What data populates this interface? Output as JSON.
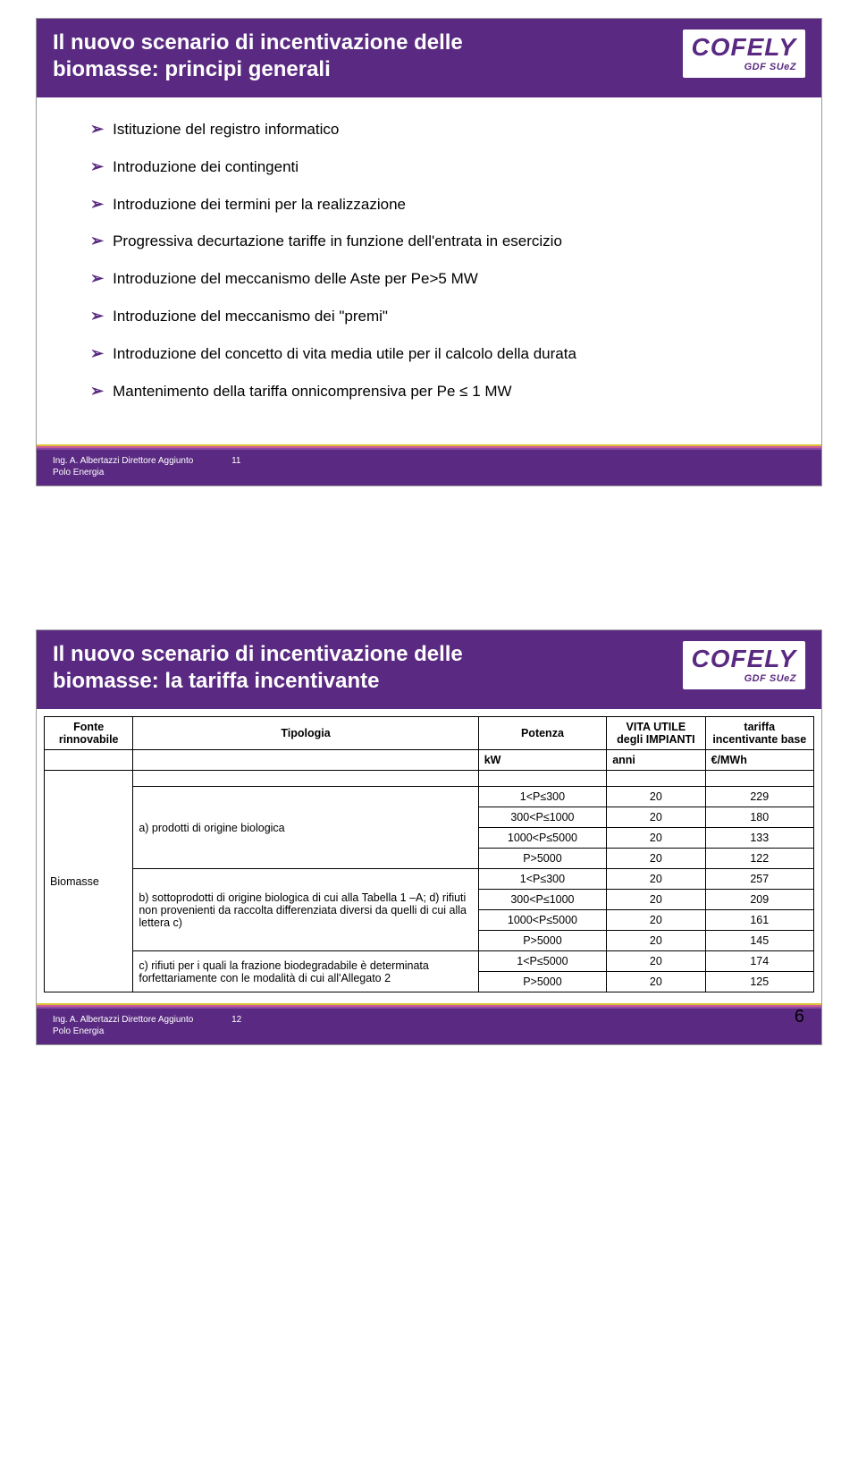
{
  "colors": {
    "brand_purple": "#5a2a82",
    "stripe_yellow": "#d9c23a",
    "stripe_pink": "#cc5a99",
    "stripe_purple": "#8b4aa3",
    "white": "#ffffff",
    "black": "#000000"
  },
  "logo": {
    "main": "COFELY",
    "sub": "GDF SUeZ"
  },
  "slide1": {
    "title_line1": "Il  nuovo scenario di incentivazione delle",
    "title_line2": "biomasse: principi generali",
    "bullets": [
      "Istituzione del registro informatico",
      "Introduzione dei contingenti",
      "Introduzione dei termini per la realizzazione",
      "Progressiva decurtazione tariffe in funzione dell'entrata in esercizio",
      "Introduzione del meccanismo delle Aste per Pe>5 MW",
      "Introduzione del meccanismo dei \"premi\"",
      "Introduzione del concetto di vita media utile per il calcolo della durata",
      "Mantenimento della tariffa onnicomprensiva per Pe ≤ 1 MW"
    ],
    "footer_credit1": "Ing. A. Albertazzi Direttore Aggiunto",
    "footer_credit2": "Polo Energia",
    "footer_num": "11"
  },
  "slide2": {
    "title_line1": "Il  nuovo scenario di incentivazione delle",
    "title_line2": "biomasse: la tariffa incentivante",
    "table": {
      "headers": {
        "fonte": "Fonte rinnovabile",
        "tipologia": "Tipologia",
        "potenza": "Potenza",
        "vita_utile": "VITA UTILE degli IMPIANTI",
        "tariffa": "tariffa incentivante base"
      },
      "units": {
        "potenza": "kW",
        "vita_utile": "anni",
        "tariffa": "€/MWh"
      },
      "fonte_label": "Biomasse",
      "tipologia_a": "a) prodotti di origine biologica",
      "tipologia_b": "b) sottoprodotti di origine biologica di cui alla Tabella 1 –A; d) rifiuti non provenienti da raccolta differenziata diversi da quelli di cui alla lettera c)",
      "tipologia_c": "c) rifiuti per i quali la frazione biodegradabile è determinata forfettariamente  con le modalità di cui all'Allegato 2",
      "rows": [
        {
          "p": "1<P≤300",
          "v": "20",
          "t": "229"
        },
        {
          "p": "300<P≤1000",
          "v": "20",
          "t": "180"
        },
        {
          "p": "1000<P≤5000",
          "v": "20",
          "t": "133"
        },
        {
          "p": "P>5000",
          "v": "20",
          "t": "122"
        },
        {
          "p": "1<P≤300",
          "v": "20",
          "t": "257"
        },
        {
          "p": "300<P≤1000",
          "v": "20",
          "t": "209"
        },
        {
          "p": "1000<P≤5000",
          "v": "20",
          "t": "161"
        },
        {
          "p": "P>5000",
          "v": "20",
          "t": "145"
        },
        {
          "p": "1<P≤5000",
          "v": "20",
          "t": "174"
        },
        {
          "p": "P>5000",
          "v": "20",
          "t": "125"
        }
      ]
    },
    "footer_credit1": "Ing. A. Albertazzi Direttore Aggiunto",
    "footer_credit2": "Polo Energia",
    "footer_num": "12"
  },
  "page_number": "6"
}
